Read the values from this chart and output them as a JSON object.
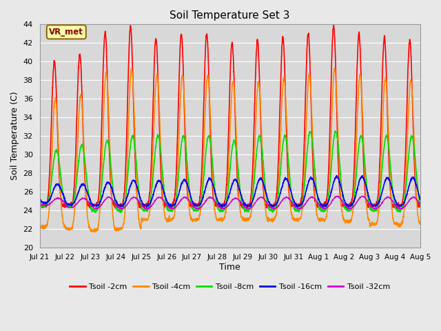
{
  "title": "Soil Temperature Set 3",
  "xlabel": "Time",
  "ylabel": "Soil Temperature (C)",
  "ylim": [
    20,
    44
  ],
  "yticks": [
    20,
    22,
    24,
    26,
    28,
    30,
    32,
    34,
    36,
    38,
    40,
    42,
    44
  ],
  "fig_bg_color": "#e8e8e8",
  "plot_bg_color": "#d8d8d8",
  "grid_color": "white",
  "annotation_text": "VR_met",
  "annotation_bg": "#ffffaa",
  "annotation_border": "#8b6914",
  "series": [
    {
      "label": "Tsoil -2cm",
      "color": "#ff0000",
      "lw": 1.2
    },
    {
      "label": "Tsoil -4cm",
      "color": "#ff8800",
      "lw": 1.2
    },
    {
      "label": "Tsoil -8cm",
      "color": "#00dd00",
      "lw": 1.2
    },
    {
      "label": "Tsoil -16cm",
      "color": "#0000ff",
      "lw": 1.2
    },
    {
      "label": "Tsoil -32cm",
      "color": "#cc00cc",
      "lw": 1.0
    }
  ],
  "n_days": 15,
  "ppd": 144,
  "xtick_labels": [
    "Jul 21",
    "Jul 22",
    "Jul 23",
    "Jul 24",
    "Jul 25",
    "Jul 26",
    "Jul 27",
    "Jul 28",
    "Jul 29",
    "Jul 30",
    "Jul 31",
    "Aug 1",
    "Aug 2",
    "Aug 3",
    "Aug 4",
    "Aug 5"
  ],
  "day_peaks_2cm": [
    40.0,
    40.8,
    43.1,
    43.8,
    42.5,
    43.0,
    43.0,
    42.0,
    42.2,
    42.5,
    43.0,
    43.8,
    43.0,
    42.5,
    42.3
  ],
  "day_peaks_4cm": [
    36.0,
    36.5,
    38.8,
    39.2,
    38.5,
    38.5,
    38.5,
    37.8,
    37.8,
    38.2,
    38.5,
    39.2,
    38.5,
    38.2,
    38.0
  ],
  "day_peaks_8cm": [
    30.5,
    31.0,
    31.5,
    32.0,
    32.0,
    32.0,
    32.0,
    31.5,
    32.0,
    32.0,
    32.5,
    32.5,
    32.0,
    32.0,
    32.0
  ],
  "day_peaks_16cm": [
    26.8,
    26.8,
    27.0,
    27.2,
    27.2,
    27.3,
    27.4,
    27.3,
    27.4,
    27.4,
    27.5,
    27.6,
    27.6,
    27.5,
    27.5
  ],
  "day_peaks_32cm": [
    25.3,
    25.3,
    25.4,
    25.4,
    25.4,
    25.4,
    25.4,
    25.3,
    25.4,
    25.4,
    25.4,
    25.5,
    25.5,
    25.4,
    25.4
  ],
  "day_mins_2cm": [
    24.5,
    24.5,
    24.5,
    24.5,
    24.5,
    24.5,
    24.5,
    24.5,
    24.5,
    24.5,
    24.5,
    24.5,
    24.5,
    24.5,
    24.5
  ],
  "day_mins_4cm": [
    22.2,
    22.0,
    21.8,
    22.0,
    23.0,
    23.0,
    23.0,
    23.0,
    23.0,
    23.0,
    23.0,
    23.0,
    22.8,
    22.5,
    22.5
  ],
  "day_mins_8cm": [
    24.5,
    24.5,
    24.0,
    24.0,
    24.0,
    24.0,
    24.0,
    24.0,
    24.0,
    24.0,
    24.0,
    24.0,
    24.0,
    24.0,
    24.0
  ],
  "day_mins_16cm": [
    24.8,
    24.6,
    24.5,
    24.5,
    24.5,
    24.5,
    24.5,
    24.5,
    24.5,
    24.5,
    24.5,
    24.5,
    24.5,
    24.5,
    24.5
  ],
  "day_mins_32cm": [
    24.5,
    24.3,
    24.2,
    24.2,
    24.2,
    24.2,
    24.2,
    24.2,
    24.2,
    24.2,
    24.2,
    24.2,
    24.2,
    24.2,
    24.2
  ],
  "peak_sharpness": [
    4.0,
    3.0,
    2.0,
    1.5,
    1.2
  ],
  "peak_phase": [
    0.58,
    0.62,
    0.66,
    0.7,
    0.72
  ],
  "noise_std": [
    0.12,
    0.1,
    0.08,
    0.05,
    0.03
  ]
}
